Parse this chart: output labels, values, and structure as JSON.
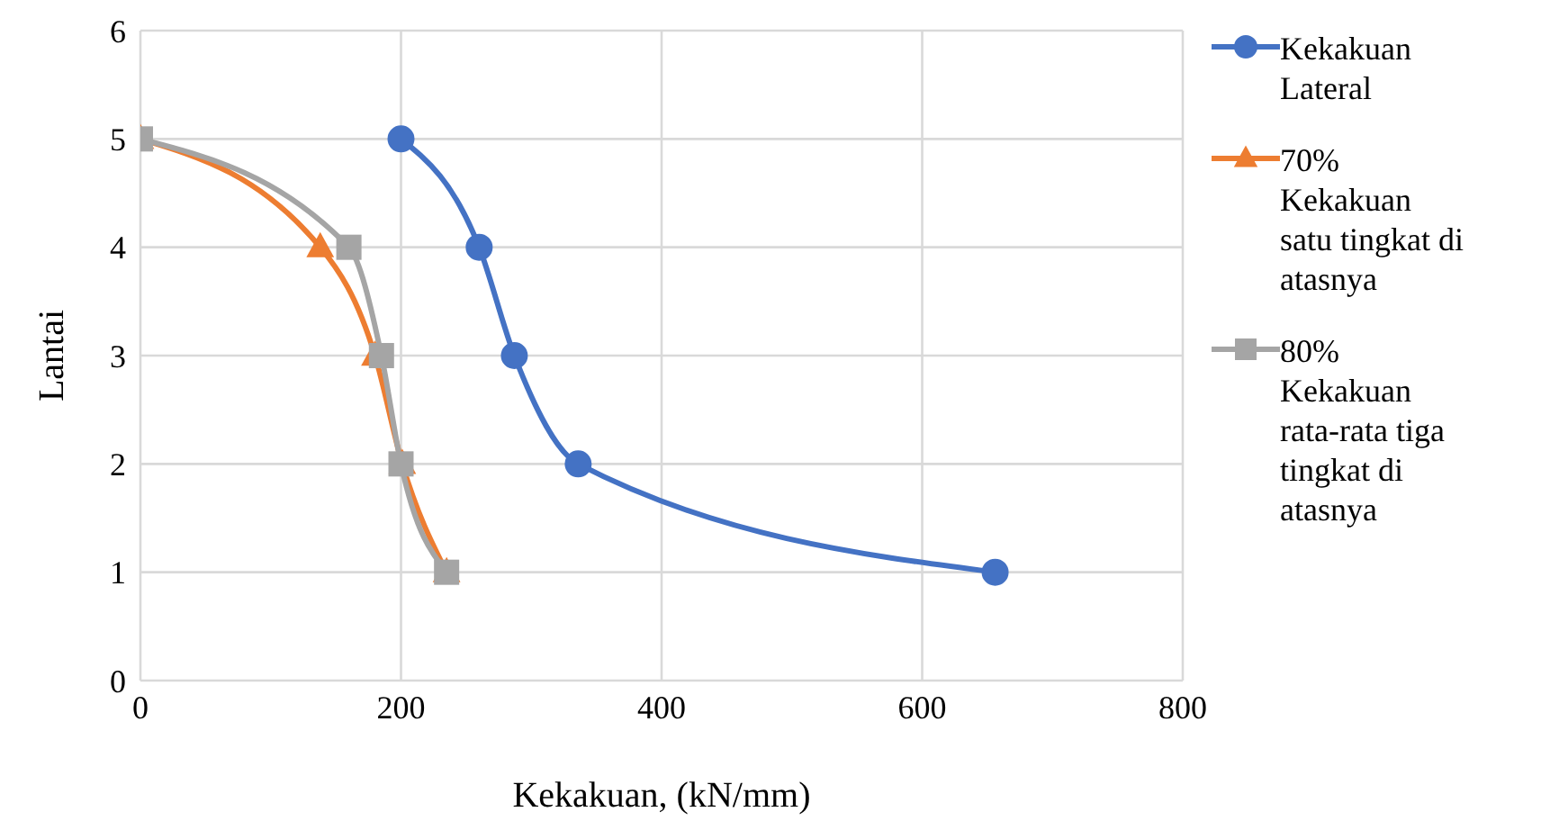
{
  "chart_data": {
    "type": "line",
    "xlabel": "Kekakuan, (kN/mm)",
    "ylabel": "Lantai",
    "xlim": [
      0,
      800
    ],
    "xticks": [
      0,
      200,
      400,
      600,
      800
    ],
    "ylim": [
      0,
      6
    ],
    "yticks": [
      0,
      1,
      2,
      3,
      4,
      5,
      6
    ],
    "grid": true,
    "legend": "right",
    "line_style": "solid",
    "series": [
      {
        "name": "Kekakuan Lateral",
        "color": "#4472c4",
        "marker": "circle",
        "x": [
          200,
          260,
          287,
          336,
          656
        ],
        "values": [
          5,
          4,
          3,
          2,
          1
        ]
      },
      {
        "name": "70% Kekakuan satu tingkat di atasnya",
        "color": "#ed7d31",
        "marker": "triangle",
        "x": [
          0,
          138,
          180,
          201,
          235
        ],
        "values": [
          5,
          4,
          3,
          2,
          1
        ]
      },
      {
        "name": "80% Kekakuan rata-rata tiga tingkat di atasnya",
        "color": "#a5a5a5",
        "marker": "square",
        "x": [
          0,
          160,
          185,
          200,
          235
        ],
        "values": [
          5,
          4,
          3,
          2,
          1
        ]
      }
    ]
  }
}
